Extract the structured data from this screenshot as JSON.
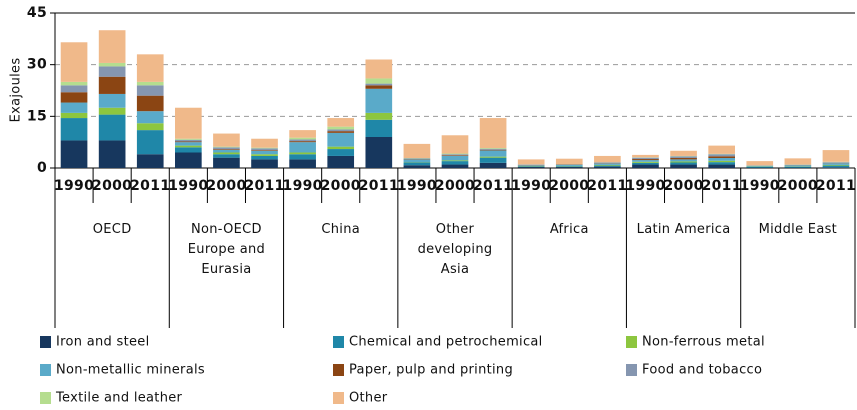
{
  "chart_data": {
    "type": "stacked_bar",
    "ylabel": "Exajoules",
    "ylim": [
      0,
      45
    ],
    "yticks": [
      0,
      15,
      30,
      45
    ],
    "grid": true,
    "groups": [
      {
        "name": "OECD",
        "categories": [
          "1990",
          "2000",
          "2011"
        ]
      },
      {
        "name": "Non-OECD Europe and Eurasia",
        "categories": [
          "1990",
          "2000",
          "2011"
        ]
      },
      {
        "name": "China",
        "categories": [
          "1990",
          "2000",
          "2011"
        ]
      },
      {
        "name": "Other developing Asia",
        "categories": [
          "1990",
          "2000",
          "2011"
        ]
      },
      {
        "name": "Africa",
        "categories": [
          "1990",
          "2000",
          "2011"
        ]
      },
      {
        "name": "Latin America",
        "categories": [
          "1990",
          "2000",
          "2011"
        ]
      },
      {
        "name": "Middle East",
        "categories": [
          "1990",
          "2000",
          "2011"
        ]
      }
    ],
    "series": [
      {
        "name": "Iron and steel",
        "color": "#17375e",
        "values": [
          8,
          8,
          4,
          4.5,
          3,
          2.5,
          2.5,
          3.5,
          9,
          0.8,
          1,
          1.5,
          0.3,
          0.3,
          0.4,
          1,
          1,
          1,
          0.1,
          0.1,
          0.2
        ]
      },
      {
        "name": "Chemical and petrochemical",
        "color": "#1f87a8",
        "values": [
          6.5,
          7.5,
          7,
          1.5,
          1,
          1,
          1.5,
          2,
          5,
          0.8,
          1,
          1.5,
          0.2,
          0.2,
          0.3,
          0.5,
          0.6,
          0.7,
          0.2,
          0.3,
          0.5
        ]
      },
      {
        "name": "Non-ferrous metal",
        "color": "#8dc63f",
        "values": [
          1.5,
          2,
          2,
          0.5,
          0.5,
          0.5,
          0.5,
          0.7,
          2,
          0.1,
          0.2,
          0.3,
          0.1,
          0.1,
          0.2,
          0.3,
          0.3,
          0.4,
          0.1,
          0.1,
          0.2
        ]
      },
      {
        "name": "Non-metallic minerals",
        "color": "#5aaac9",
        "values": [
          3,
          4,
          3.5,
          1,
          0.8,
          1,
          3,
          4,
          7,
          0.8,
          1.3,
          1.8,
          0.2,
          0.3,
          0.4,
          0.5,
          0.6,
          0.8,
          0.2,
          0.3,
          0.5
        ]
      },
      {
        "name": "Paper, pulp and printing",
        "color": "#8b4513",
        "values": [
          3,
          5,
          4.5,
          0.2,
          0.2,
          0.2,
          0.3,
          0.5,
          1,
          0.1,
          0.2,
          0.2,
          0.1,
          0.1,
          0.1,
          0.3,
          0.4,
          0.5,
          0.05,
          0.05,
          0.1
        ]
      },
      {
        "name": "Food and tobacco",
        "color": "#8596b0",
        "values": [
          2,
          3,
          3,
          0.5,
          0.5,
          0.5,
          0.5,
          0.5,
          0.5,
          0.2,
          0.3,
          0.3,
          0.1,
          0.1,
          0.2,
          0.4,
          0.5,
          0.6,
          0.1,
          0.1,
          0.2
        ]
      },
      {
        "name": "Textile and leather",
        "color": "#b5dd8f",
        "values": [
          1,
          1,
          1,
          0.3,
          0.2,
          0.2,
          0.5,
          0.8,
          1.5,
          0.1,
          0.2,
          0.2,
          0.05,
          0.05,
          0.05,
          0.1,
          0.1,
          0.1,
          0.05,
          0.05,
          0.1
        ]
      },
      {
        "name": "Other",
        "color": "#f0b98a",
        "values": [
          11.5,
          9.5,
          8,
          9,
          3.8,
          2.6,
          2.2,
          2.5,
          5.5,
          4.1,
          5.3,
          8.7,
          1.45,
          1.55,
          1.85,
          0.7,
          1.5,
          2.4,
          1.2,
          1.8,
          3.4
        ]
      }
    ]
  }
}
